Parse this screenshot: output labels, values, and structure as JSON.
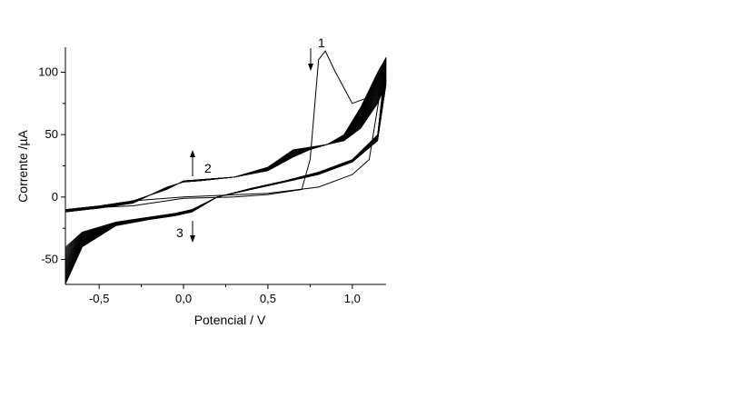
{
  "chart_data": {
    "type": "line",
    "xlabel": "Potencial / V",
    "ylabel": "Corrente /µA",
    "xlim": [
      -0.7,
      1.2
    ],
    "ylim": [
      -70,
      120
    ],
    "xticks": [
      -0.5,
      0.0,
      0.5,
      1.0
    ],
    "xtick_labels": [
      "-0,5",
      "0,0",
      "0,5",
      "1,0"
    ],
    "yticks": [
      -50,
      0,
      50,
      100
    ],
    "ytick_labels": [
      "-50",
      "0",
      "50",
      "100"
    ],
    "grid": false,
    "cycles": 40,
    "series": [
      {
        "x": [
          0.75,
          0.8,
          0.84,
          0.9,
          1.0,
          1.1,
          1.19,
          1.1,
          1.0,
          0.8,
          0.5,
          0.0,
          -0.3,
          -0.6,
          -0.7,
          -0.6,
          -0.3,
          0.0,
          0.3,
          0.5,
          0.7,
          0.75
        ],
        "y": [
          30,
          110,
          117,
          100,
          75,
          80,
          105,
          30,
          18,
          8,
          3,
          0,
          -3,
          -10,
          -12,
          -9,
          -7,
          -1,
          0,
          2,
          6,
          30
        ]
      },
      {
        "x": [
          -0.7,
          -0.5,
          -0.3,
          -0.1,
          0.0,
          0.1,
          0.3,
          0.5,
          0.65,
          0.75,
          0.85,
          0.95,
          1.05,
          1.15,
          1.2,
          1.15,
          1.0,
          0.8,
          0.6,
          0.4,
          0.2,
          0.05,
          -0.05,
          -0.2,
          -0.4,
          -0.6,
          -0.7
        ],
        "y": [
          -10,
          -7,
          -3,
          6,
          13,
          14,
          16,
          21,
          32,
          38,
          42,
          45,
          55,
          75,
          90,
          45,
          28,
          18,
          12,
          6,
          0,
          -10,
          -13,
          -16,
          -20,
          -28,
          -40
        ]
      },
      {
        "x": [
          -0.7,
          -0.5,
          -0.3,
          -0.1,
          0.0,
          0.1,
          0.3,
          0.5,
          0.65,
          0.75,
          0.85,
          0.95,
          1.05,
          1.15,
          1.2,
          1.15,
          1.0,
          0.8,
          0.6,
          0.4,
          0.2,
          0.05,
          -0.05,
          -0.2,
          -0.4,
          -0.6,
          -0.7
        ],
        "y": [
          -12,
          -9,
          -5,
          8,
          12,
          13,
          16,
          24,
          38,
          40,
          42,
          50,
          72,
          100,
          112,
          50,
          30,
          20,
          13,
          7,
          0,
          -12,
          -15,
          -18,
          -23,
          -40,
          -70
        ]
      }
    ],
    "annotations": [
      "1",
      "2",
      "3"
    ]
  }
}
